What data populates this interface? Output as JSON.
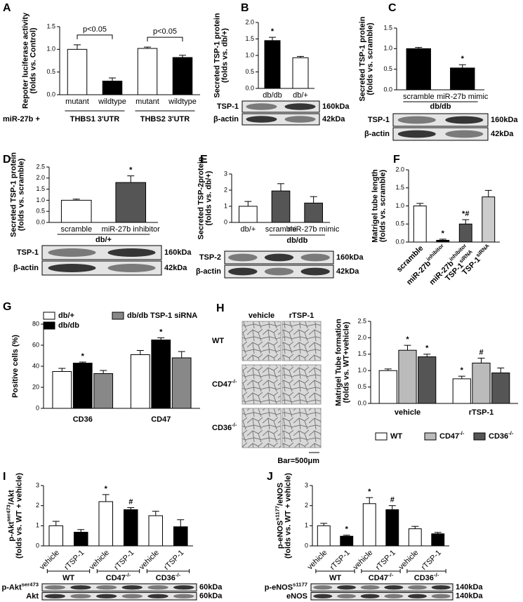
{
  "chart_data": [
    {
      "type": "bar",
      "panel": "A",
      "ylabel": [
        "Repoter luciferase activity",
        "(folds vs. Control)"
      ],
      "categories": [
        "mutant",
        "wildtype",
        "mutant",
        "wildtype"
      ],
      "values": [
        1.0,
        0.3,
        1.02,
        0.82
      ],
      "errors": [
        0.1,
        0.07,
        0.03,
        0.05
      ],
      "colors": [
        "#ffffff",
        "#000000",
        "#ffffff",
        "#000000"
      ],
      "ylim": [
        0,
        1.5
      ],
      "yticks": [
        {
          "value": 0,
          "label": "0.0"
        },
        {
          "value": 0.5,
          "label": "0.5"
        },
        {
          "value": 1,
          "label": "1.0"
        },
        {
          "value": 1.5,
          "label": "1.5"
        }
      ],
      "groups": [
        {
          "label": "THBS1 3'UTR",
          "bracket": "p<0.05"
        },
        {
          "label": "THBS2 3'UTR",
          "bracket": "p<0.05"
        }
      ],
      "prefix": "miR-27b +"
    },
    {
      "type": "bar",
      "panel": "B",
      "ylabel": [
        "Secreted TSP-1 protein",
        "(folds vs. db/+)"
      ],
      "categories": [
        "db/db",
        "db/+"
      ],
      "values": [
        1.45,
        0.93
      ],
      "errors": [
        0.1,
        0.04
      ],
      "annotations": [
        "*",
        null
      ],
      "colors": [
        "#000000",
        "#ffffff"
      ],
      "ylim": [
        0,
        2
      ],
      "yticks": [
        {
          "value": 0,
          "label": "0.0"
        },
        {
          "value": 0.5,
          "label": "0.5"
        },
        {
          "value": 1,
          "label": "1.0"
        },
        {
          "value": 1.5,
          "label": "1.5"
        },
        {
          "value": 2,
          "label": "2.0"
        }
      ],
      "blot": [
        {
          "label": "TSP-1",
          "kda": "160kDa"
        },
        {
          "label": "β-actin",
          "kda": "42kDa"
        }
      ]
    },
    {
      "type": "bar",
      "panel": "C",
      "ylabel": [
        "Secreted TSP-1 protein",
        "(folds vs. scramble)"
      ],
      "categories": [
        "scramble",
        "miR-27b mimic"
      ],
      "values": [
        1.0,
        0.53
      ],
      "errors": [
        0.03,
        0.08
      ],
      "annotations": [
        null,
        "*"
      ],
      "colors": [
        "#000000",
        "#000000"
      ],
      "ylim": [
        0,
        1.5
      ],
      "yticks": [
        {
          "value": 0,
          "label": "0.0"
        },
        {
          "value": 0.5,
          "label": "0.5"
        },
        {
          "value": 1,
          "label": "1.0"
        },
        {
          "value": 1.5,
          "label": "1.5"
        }
      ],
      "groups": [
        {
          "label": "db/db"
        }
      ],
      "blot": [
        {
          "label": "TSP-1",
          "kda": "160kDa"
        },
        {
          "label": "β-actin",
          "kda": "42kDa"
        }
      ]
    },
    {
      "type": "bar",
      "panel": "D",
      "ylabel": [
        "Secreted TSP-1 protein",
        "(folds vs. scramble)"
      ],
      "categories": [
        "scramble",
        "miR-27b inhibitor"
      ],
      "values": [
        1.0,
        1.8
      ],
      "errors": [
        0.05,
        0.3
      ],
      "annotations": [
        null,
        "*"
      ],
      "colors": [
        "#ffffff",
        "#555555"
      ],
      "ylim": [
        0,
        2.5
      ],
      "yticks": [
        {
          "value": 0,
          "label": "0.0"
        },
        {
          "value": 0.5,
          "label": "0.5"
        },
        {
          "value": 1,
          "label": "1.0"
        },
        {
          "value": 1.5,
          "label": "1.5"
        },
        {
          "value": 2,
          "label": "2.0"
        },
        {
          "value": 2.5,
          "label": "2.5"
        }
      ],
      "groups": [
        {
          "label": "db/+"
        }
      ],
      "blot": [
        {
          "label": "TSP-1",
          "kda": "160kDa"
        },
        {
          "label": "β-actin",
          "kda": "42kDa"
        }
      ]
    },
    {
      "type": "bar",
      "panel": "E",
      "ylabel": [
        "Secreted TSP-2protein",
        "(folds vs. db/+)"
      ],
      "categories": [
        "db/+",
        "scramble",
        "miR-27b mimic"
      ],
      "values": [
        1.0,
        1.95,
        1.2
      ],
      "errors": [
        0.3,
        0.45,
        0.4
      ],
      "colors": [
        "#ffffff",
        "#555555",
        "#555555"
      ],
      "ylim": [
        0,
        3
      ],
      "yticks": [
        0,
        1,
        2,
        3
      ],
      "groups": [
        {
          "label": "db/db"
        }
      ],
      "blot": [
        {
          "label": "TSP-2",
          "kda": "160kDa"
        },
        {
          "label": "β-actin",
          "kda": "42kDa"
        }
      ]
    },
    {
      "type": "bar",
      "panel": "F",
      "ylabel": [
        "Matrigel tube length",
        "(folds vs. scramble)"
      ],
      "categories": [
        "scramble",
        [
          [
            "miR-27b",
            {
              "sup": "inhibitor"
            }
          ]
        ],
        [
          [
            "miR-27b",
            {
              "sup": "inhibitor"
            }
          ],
          [
            "TSP-1",
            {
              "sup": "siRNA"
            }
          ]
        ],
        [
          [
            "TSP-1",
            {
              "sup": "siRNA"
            }
          ]
        ]
      ],
      "values": [
        1.0,
        0.05,
        0.5,
        1.25
      ],
      "errors": [
        0.07,
        0.03,
        0.12,
        0.18
      ],
      "annotations": [
        null,
        "*",
        "*#",
        null
      ],
      "colors": [
        "#ffffff",
        "#000000",
        "#555555",
        "#cccccc"
      ],
      "ylim": [
        0,
        2
      ],
      "yticks": [
        {
          "value": 0,
          "label": "0.0"
        },
        {
          "value": 0.5,
          "label": "0.5"
        },
        {
          "value": 1,
          "label": "1.0"
        },
        {
          "value": 1.5,
          "label": "1.5"
        },
        {
          "value": 2,
          "label": "2.0"
        }
      ]
    },
    {
      "type": "grouped_bar",
      "panel": "G",
      "ylabel": [
        "Positive cells (%)"
      ],
      "categories": [
        "CD36",
        "CD47"
      ],
      "ylim": [
        0,
        80
      ],
      "yticks": [
        0,
        20,
        40,
        60,
        80
      ],
      "series": [
        {
          "name": "db/+",
          "color": "#ffffff",
          "values": [
            35,
            51
          ],
          "errors": [
            3,
            4
          ],
          "annotations": [
            null,
            null
          ]
        },
        {
          "name": "db/db",
          "color": "#000000",
          "values": [
            43,
            65
          ],
          "errors": [
            1,
            2
          ],
          "annotations": [
            "*",
            "*"
          ]
        },
        {
          "name": "db/db TSP-1 siRNA",
          "color": "#888888",
          "values": [
            33,
            48
          ],
          "errors": [
            3,
            6
          ],
          "annotations": [
            null,
            null
          ]
        }
      ]
    },
    {
      "type": "grouped_bar",
      "panel": "H",
      "ylabel": [
        "Matrigel Tube formation",
        "(folds vs. WT+vehicle)"
      ],
      "categories": [
        "vehicle",
        "rTSP-1"
      ],
      "ylim": [
        0,
        2.5
      ],
      "yticks": [
        {
          "value": 0,
          "label": "0.0"
        },
        {
          "value": 0.5,
          "label": "0.5"
        },
        {
          "value": 1,
          "label": "1.0"
        },
        {
          "value": 1.5,
          "label": "1.5"
        },
        {
          "value": 2,
          "label": "2.0"
        },
        {
          "value": 2.5,
          "label": "2.5"
        }
      ],
      "series": [
        {
          "name": "WT",
          "color": "#ffffff",
          "values": [
            1.0,
            0.75
          ],
          "errors": [
            0.05,
            0.08
          ],
          "annotations": [
            null,
            "*"
          ]
        },
        {
          "name": [
            [
              "CD47",
              {
                "sup": "-/-"
              }
            ]
          ],
          "color": "#bbbbbb",
          "values": [
            1.62,
            1.23
          ],
          "errors": [
            0.15,
            0.15
          ],
          "annotations": [
            "*",
            "#"
          ]
        },
        {
          "name": [
            [
              "CD36",
              {
                "sup": "-/-"
              }
            ]
          ],
          "color": "#555555",
          "values": [
            1.42,
            0.93
          ],
          "errors": [
            0.08,
            0.15
          ],
          "annotations": [
            "*",
            null
          ]
        }
      ],
      "images": {
        "columns": [
          "vehicle",
          "rTSP-1"
        ],
        "rows": [
          "WT",
          [
            [
              "CD47",
              {
                "sup": "-/-"
              }
            ]
          ],
          [
            [
              "CD36",
              {
                "sup": "-/-"
              }
            ]
          ]
        ],
        "scale": "Bar=500μm"
      }
    },
    {
      "type": "bar",
      "panel": "I",
      "ylabel": [
        [
          "p-Akt",
          {
            "sup": "ser473"
          },
          "/Akt"
        ],
        "(folds vs. WT + vehicle)"
      ],
      "categories": [
        "vehicle",
        "rTSP-1",
        "vehicle",
        "rTSP-1",
        "vehicle",
        "rTSP-1"
      ],
      "values": [
        1.0,
        0.68,
        2.2,
        1.8,
        1.5,
        0.95
      ],
      "errors": [
        0.22,
        0.13,
        0.35,
        0.1,
        0.22,
        0.35
      ],
      "annotations": [
        null,
        null,
        "*",
        "#",
        null,
        null
      ],
      "colors": [
        "#ffffff",
        "#000000",
        "#ffffff",
        "#000000",
        "#ffffff",
        "#000000"
      ],
      "ylim": [
        0,
        3
      ],
      "yticks": [
        0,
        1,
        2,
        3
      ],
      "groups": [
        {
          "label": "WT"
        },
        {
          "label": [
            [
              "CD47",
              {
                "sup": "-/-"
              }
            ]
          ]
        },
        {
          "label": [
            [
              "CD36",
              {
                "sup": "-/-"
              }
            ]
          ]
        }
      ],
      "blot": [
        {
          "label": [
            [
              "p-Akt",
              {
                "sup": "ser473"
              }
            ]
          ],
          "kda": "60kDa"
        },
        {
          "label": "Akt",
          "kda": "60kDa"
        }
      ]
    },
    {
      "type": "bar",
      "panel": "J",
      "ylabel": [
        [
          "p-eNOS",
          {
            "sup": "s1177"
          },
          "/eNOS"
        ],
        "(folds vs. WT + vehicle)"
      ],
      "categories": [
        "vehicle",
        "rTSP-1",
        "vehicle",
        "rTSP-1",
        "vehicle",
        "rTSP-1"
      ],
      "values": [
        1.0,
        0.48,
        2.1,
        1.8,
        0.85,
        0.6
      ],
      "errors": [
        0.12,
        0.05,
        0.3,
        0.2,
        0.12,
        0.07
      ],
      "annotations": [
        null,
        "*",
        "*",
        "#",
        null,
        null
      ],
      "colors": [
        "#ffffff",
        "#000000",
        "#ffffff",
        "#000000",
        "#ffffff",
        "#000000"
      ],
      "ylim": [
        0,
        3
      ],
      "yticks": [
        0,
        1,
        2,
        3
      ],
      "groups": [
        {
          "label": "WT"
        },
        {
          "label": [
            [
              "CD47",
              {
                "sup": "-/-"
              }
            ]
          ]
        },
        {
          "label": [
            [
              "CD36",
              {
                "sup": "-/-"
              }
            ]
          ]
        }
      ],
      "blot": [
        {
          "label": [
            [
              "p-eNOS",
              {
                "sup": "s1177"
              }
            ]
          ],
          "kda": "140kDa"
        },
        {
          "label": "eNOS",
          "kda": "140kDa"
        }
      ]
    }
  ]
}
